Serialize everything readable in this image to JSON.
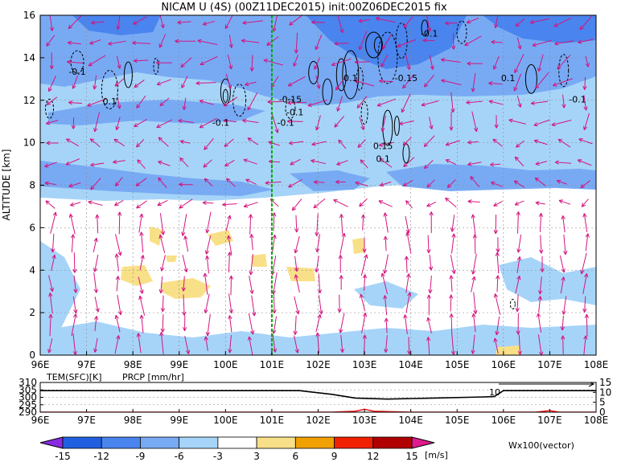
{
  "chart_data": [
    {
      "type": "cross-section",
      "title": "NICAM U (4S) (00Z11DEC2015) init:00Z06DEC2015 fix",
      "ylabel": "ALTITUDE [km]",
      "x_ticks": [
        "96E",
        "97E",
        "98E",
        "99E",
        "100E",
        "101E",
        "102E",
        "103E",
        "104E",
        "105E",
        "106E",
        "107E",
        "108E"
      ],
      "x_range": [
        96,
        108
      ],
      "y_ticks": [
        "0",
        "2",
        "4",
        "6",
        "8",
        "10",
        "12",
        "14",
        "16"
      ],
      "y_range": [
        0,
        16
      ],
      "marker_longitude": 101,
      "shading_variable": "U",
      "shading_units": "[m/s]",
      "vector_label": "Wx100(vector)",
      "colorbar_labels": [
        "-15",
        "-12",
        "-9",
        "-6",
        "-3",
        "3",
        "6",
        "9",
        "12",
        "15"
      ],
      "colorbar_colors": [
        "#8a2be2",
        "#2060e0",
        "#4a84ee",
        "#78aaf4",
        "#a6d4f8",
        "#ffffff",
        "#f8e088",
        "#f0a000",
        "#f02000",
        "#b00000",
        "#e01a8c"
      ],
      "contour_labels": [
        {
          "text": "-0.1",
          "lon": 96.8,
          "alt": 13.2
        },
        {
          "text": "0.1",
          "lon": 97.5,
          "alt": 11.8
        },
        {
          "text": "-0.1",
          "lon": 99.9,
          "alt": 10.8
        },
        {
          "text": "-0.15",
          "lon": 101.4,
          "alt": 11.9
        },
        {
          "text": "-0.1",
          "lon": 101.5,
          "alt": 11.3
        },
        {
          "text": "-0.1",
          "lon": 101.3,
          "alt": 10.8
        },
        {
          "text": "0.1",
          "lon": 102.7,
          "alt": 12.9
        },
        {
          "text": "-0.15",
          "lon": 103.9,
          "alt": 12.9
        },
        {
          "text": "-0.1",
          "lon": 104.4,
          "alt": 15.0
        },
        {
          "text": "0.1",
          "lon": 106.1,
          "alt": 12.9
        },
        {
          "text": "-0.1",
          "lon": 107.6,
          "alt": 11.9
        },
        {
          "text": "0.15",
          "lon": 103.4,
          "alt": 9.7
        },
        {
          "text": "0.1",
          "lon": 103.4,
          "alt": 9.1
        }
      ]
    },
    {
      "type": "line",
      "series": [
        {
          "name": "TEM(SFC)[K]",
          "color": "#000000",
          "x": [
            96,
            99,
            101.6,
            102.3,
            102.8,
            103.5,
            104.5,
            105.5,
            105.8,
            106,
            108
          ],
          "values": [
            304.5,
            304.5,
            304.5,
            302,
            299.5,
            298.8,
            299.5,
            300.2,
            300.5,
            304.5,
            304.5
          ]
        },
        {
          "name": "PRCP [mm/hr]",
          "color": "#ff0000",
          "x": [
            96,
            102.3,
            102.8,
            103,
            103.2,
            104,
            106.7,
            107,
            107.2,
            108
          ],
          "values": [
            0,
            0,
            0.5,
            1.5,
            0.5,
            0,
            0,
            0.8,
            0,
            0
          ]
        }
      ],
      "left_ticks": [
        "310",
        "305",
        "300",
        "295",
        "290"
      ],
      "left_range": [
        290,
        310
      ],
      "right_ticks": [
        "15",
        "10",
        "5",
        "0"
      ],
      "right_range": [
        0,
        15
      ],
      "annotation": "10",
      "x_ticks": [
        "96E",
        "97E",
        "98E",
        "99E",
        "100E",
        "101E",
        "102E",
        "103E",
        "104E",
        "105E",
        "106E",
        "107E",
        "108E"
      ]
    }
  ]
}
